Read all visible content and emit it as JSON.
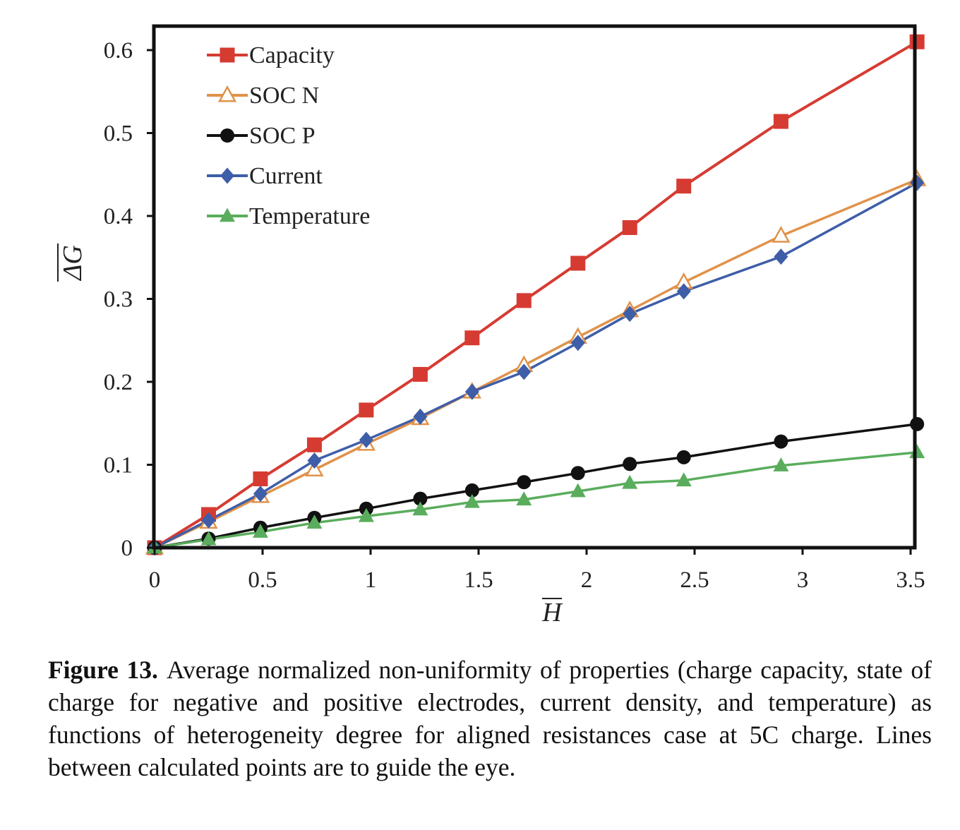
{
  "chart_data": {
    "type": "line",
    "xlabel": "H",
    "ylabel": "ΔG",
    "xlim": [
      0,
      3.5
    ],
    "ylim": [
      0,
      0.6
    ],
    "xticks": [
      0,
      0.5,
      1,
      1.5,
      2,
      2.5,
      3,
      3.5
    ],
    "yticks": [
      0,
      0.1,
      0.2,
      0.3,
      0.4,
      0.5,
      0.6
    ],
    "xtick_labels": [
      "0",
      "0.5",
      "1",
      "1.5",
      "2",
      "2.5",
      "3",
      "3.5"
    ],
    "ytick_labels": [
      "0",
      "0.1",
      "0.2",
      "0.3",
      "0.4",
      "0.5",
      "0.6"
    ],
    "grid": false,
    "legend_position": "top-left",
    "series": [
      {
        "name": "Capacity",
        "color": "#d63b32",
        "marker": "square-filled",
        "x": [
          0,
          0.25,
          0.49,
          0.74,
          0.98,
          1.23,
          1.47,
          1.71,
          1.96,
          2.2,
          2.45,
          2.9,
          3.53
        ],
        "y": [
          0,
          0.04,
          0.083,
          0.124,
          0.166,
          0.209,
          0.253,
          0.298,
          0.343,
          0.386,
          0.436,
          0.514,
          0.61
        ]
      },
      {
        "name": "SOC N",
        "color": "#e0924a",
        "marker": "triangle-open",
        "x": [
          0,
          0.25,
          0.49,
          0.74,
          0.98,
          1.23,
          1.47,
          1.71,
          1.96,
          2.2,
          2.45,
          2.9,
          3.53
        ],
        "y": [
          0,
          0.031,
          0.062,
          0.094,
          0.125,
          0.156,
          0.188,
          0.22,
          0.254,
          0.286,
          0.32,
          0.376,
          0.444
        ]
      },
      {
        "name": "SOC P",
        "color": "#111111",
        "marker": "circle-filled",
        "x": [
          0,
          0.25,
          0.49,
          0.74,
          0.98,
          1.23,
          1.47,
          1.71,
          1.96,
          2.2,
          2.45,
          2.9,
          3.53
        ],
        "y": [
          0,
          0.011,
          0.024,
          0.036,
          0.047,
          0.059,
          0.069,
          0.079,
          0.09,
          0.101,
          0.109,
          0.128,
          0.149
        ]
      },
      {
        "name": "Current",
        "color": "#3f5ea8",
        "marker": "diamond-filled",
        "x": [
          0,
          0.25,
          0.49,
          0.74,
          0.98,
          1.23,
          1.47,
          1.71,
          1.96,
          2.2,
          2.45,
          2.9,
          3.53
        ],
        "y": [
          0,
          0.033,
          0.065,
          0.105,
          0.13,
          0.158,
          0.188,
          0.212,
          0.247,
          0.282,
          0.309,
          0.351,
          0.44
        ]
      },
      {
        "name": "Temperature",
        "color": "#5aad5c",
        "marker": "triangle-filled",
        "x": [
          0,
          0.25,
          0.49,
          0.74,
          0.98,
          1.23,
          1.47,
          1.71,
          1.96,
          2.2,
          2.45,
          2.9,
          3.53
        ],
        "y": [
          0,
          0.01,
          0.019,
          0.03,
          0.038,
          0.046,
          0.055,
          0.058,
          0.068,
          0.078,
          0.081,
          0.099,
          0.115
        ]
      }
    ]
  },
  "caption": {
    "label": "Figure 13.",
    "text": "Average normalized non-uniformity of properties (charge capacity, state of charge for negative and positive electrodes, current density, and temperature) as functions of heterogeneity degree for aligned resistances case at 5C charge. Lines between calculated points are to guide the eye."
  }
}
